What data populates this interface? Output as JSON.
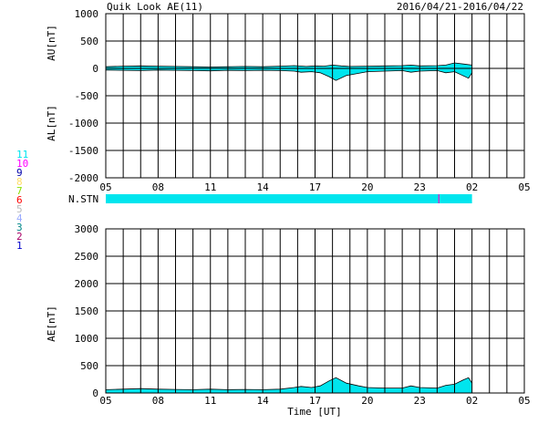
{
  "header": {
    "title": "Quik Look AE(11)",
    "date_range": "2016/04/21-2016/04/22"
  },
  "colors": {
    "fill": "#00e5ee",
    "marker": "#cc33cc",
    "grid": "#000000"
  },
  "station_legend": [
    {
      "number": "11",
      "color": "#00e5ee"
    },
    {
      "number": "10",
      "color": "#ff00ff"
    },
    {
      "number": "9",
      "color": "#0000aa"
    },
    {
      "number": "8",
      "color": "#ffdd66"
    },
    {
      "number": "7",
      "color": "#88e000"
    },
    {
      "number": "6",
      "color": "#ff0000"
    },
    {
      "number": "5",
      "color": "#bbbbbb"
    },
    {
      "number": "4",
      "color": "#99aaff"
    },
    {
      "number": "3",
      "color": "#008888"
    },
    {
      "number": "2",
      "color": "#aa0066"
    },
    {
      "number": "1",
      "color": "#0000cc"
    }
  ],
  "nstn_label": "N.STN",
  "chart_data": [
    {
      "type": "area",
      "panel": "AU/AL",
      "ylabel_top": "AU[nT]",
      "ylabel_bottom": "AL[nT]",
      "ylim": [
        -2000,
        1000
      ],
      "yticks": [
        "1000",
        "500",
        "0",
        "-500",
        "-1000",
        "-1500",
        "-2000"
      ],
      "xticks": [
        "05",
        "08",
        "11",
        "14",
        "17",
        "20",
        "23",
        "02",
        "05"
      ],
      "x_hours": [
        5,
        29
      ],
      "au": [
        [
          5,
          30
        ],
        [
          6,
          40
        ],
        [
          7,
          45
        ],
        [
          8,
          40
        ],
        [
          9,
          35
        ],
        [
          10,
          30
        ],
        [
          11,
          25
        ],
        [
          12,
          30
        ],
        [
          13,
          35
        ],
        [
          14,
          30
        ],
        [
          15,
          40
        ],
        [
          15.8,
          50
        ],
        [
          16.5,
          35
        ],
        [
          17,
          45
        ],
        [
          17.5,
          40
        ],
        [
          18,
          60
        ],
        [
          18.5,
          45
        ],
        [
          19,
          35
        ],
        [
          20,
          40
        ],
        [
          21,
          45
        ],
        [
          22,
          50
        ],
        [
          22.5,
          60
        ],
        [
          23,
          45
        ],
        [
          24,
          50
        ],
        [
          24.5,
          60
        ],
        [
          25,
          100
        ],
        [
          25.5,
          80
        ],
        [
          26,
          60
        ]
      ],
      "al": [
        [
          5,
          -30
        ],
        [
          6,
          -35
        ],
        [
          7,
          -40
        ],
        [
          8,
          -30
        ],
        [
          9,
          -35
        ],
        [
          10,
          -40
        ],
        [
          11,
          -45
        ],
        [
          12,
          -35
        ],
        [
          13,
          -40
        ],
        [
          14,
          -35
        ],
        [
          15,
          -40
        ],
        [
          15.8,
          -50
        ],
        [
          16.2,
          -70
        ],
        [
          16.8,
          -60
        ],
        [
          17.3,
          -80
        ],
        [
          17.8,
          -150
        ],
        [
          18.2,
          -220
        ],
        [
          18.8,
          -130
        ],
        [
          19.5,
          -90
        ],
        [
          20,
          -60
        ],
        [
          21,
          -50
        ],
        [
          22,
          -40
        ],
        [
          22.5,
          -70
        ],
        [
          23,
          -50
        ],
        [
          24,
          -40
        ],
        [
          24.5,
          -80
        ],
        [
          25,
          -60
        ],
        [
          25.4,
          -120
        ],
        [
          25.8,
          -180
        ],
        [
          26,
          -80
        ]
      ]
    },
    {
      "type": "area",
      "panel": "AE",
      "ylabel": "AE[nT]",
      "xlabel": "Time [UT]",
      "ylim": [
        0,
        3000
      ],
      "yticks": [
        "3000",
        "2500",
        "2000",
        "1500",
        "1000",
        "500",
        "0"
      ],
      "xticks": [
        "05",
        "08",
        "11",
        "14",
        "17",
        "20",
        "23",
        "02",
        "05"
      ],
      "x_hours": [
        5,
        29
      ],
      "ae": [
        [
          5,
          60
        ],
        [
          6,
          70
        ],
        [
          7,
          80
        ],
        [
          8,
          70
        ],
        [
          9,
          65
        ],
        [
          10,
          60
        ],
        [
          11,
          70
        ],
        [
          12,
          60
        ],
        [
          13,
          65
        ],
        [
          14,
          60
        ],
        [
          15,
          70
        ],
        [
          15.8,
          100
        ],
        [
          16.2,
          120
        ],
        [
          16.8,
          100
        ],
        [
          17.3,
          130
        ],
        [
          17.8,
          220
        ],
        [
          18.2,
          280
        ],
        [
          18.8,
          180
        ],
        [
          19.5,
          130
        ],
        [
          20,
          100
        ],
        [
          21,
          90
        ],
        [
          22,
          90
        ],
        [
          22.5,
          130
        ],
        [
          23,
          100
        ],
        [
          24,
          90
        ],
        [
          24.5,
          140
        ],
        [
          25,
          160
        ],
        [
          25.5,
          240
        ],
        [
          25.8,
          280
        ],
        [
          26,
          180
        ]
      ]
    }
  ]
}
